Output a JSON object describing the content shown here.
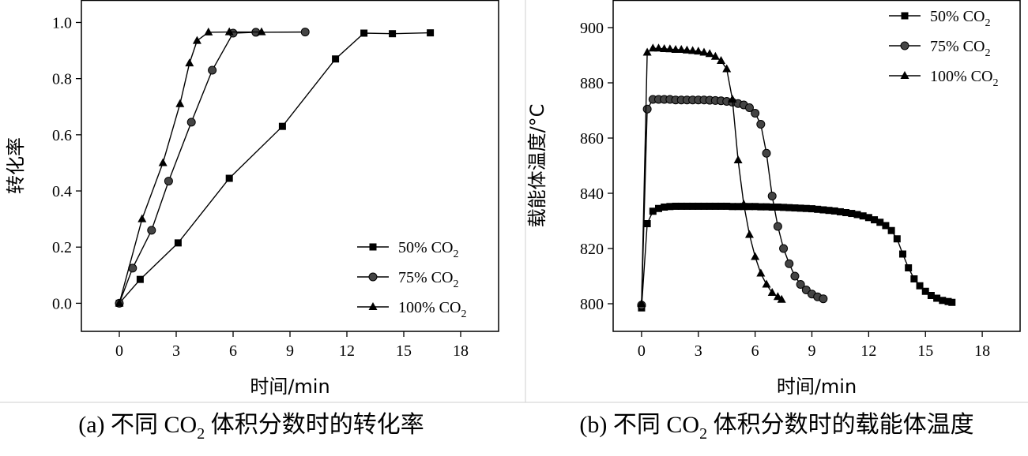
{
  "chart_data": [
    {
      "type": "line",
      "caption_prefix": "(a) 不同 CO",
      "caption_sub": "2",
      "caption_suffix": " 体积分数时的转化率",
      "xlabel": "时间/min",
      "ylabel": "转化率",
      "xlim": [
        -2,
        20
      ],
      "ylim": [
        -0.1,
        1.08
      ],
      "xticks": [
        0,
        3,
        6,
        9,
        12,
        15,
        18
      ],
      "xtick_labels": [
        "0",
        "3",
        "6",
        "9",
        "12",
        "15",
        "18"
      ],
      "yticks": [
        0,
        0.2,
        0.4,
        0.6,
        0.8,
        1.0
      ],
      "ytick_labels": [
        "0.0",
        "0.2",
        "0.4",
        "0.6",
        "0.8",
        "1.0"
      ],
      "grid": false,
      "legend_position": "bottom-right",
      "series": [
        {
          "name": "50% CO",
          "name_sub": "2",
          "marker": "square",
          "x": [
            0,
            1.1,
            3.1,
            5.8,
            8.6,
            11.4,
            12.9,
            14.4,
            16.4
          ],
          "y": [
            0,
            0.085,
            0.215,
            0.445,
            0.63,
            0.87,
            0.962,
            0.96,
            0.963
          ]
        },
        {
          "name": "75% CO",
          "name_sub": "2",
          "marker": "circle",
          "x": [
            0,
            0.7,
            1.7,
            2.6,
            3.8,
            4.9,
            6.0,
            7.2,
            9.8
          ],
          "y": [
            0,
            0.125,
            0.26,
            0.435,
            0.645,
            0.83,
            0.962,
            0.965,
            0.966
          ]
        },
        {
          "name": "100% CO",
          "name_sub": "2",
          "marker": "triangle",
          "x": [
            0,
            1.2,
            2.3,
            3.2,
            3.7,
            4.1,
            4.7,
            5.8,
            7.5
          ],
          "y": [
            0,
            0.3,
            0.5,
            0.71,
            0.855,
            0.935,
            0.965,
            0.966,
            0.966
          ]
        }
      ]
    },
    {
      "type": "line",
      "caption_prefix": "(b) 不同 CO",
      "caption_sub": "2",
      "caption_suffix": " 体积分数时的载能体温度",
      "xlabel": "时间/min",
      "ylabel": "载能体温度/°C",
      "xlim": [
        -1.5,
        20
      ],
      "ylim": [
        790,
        910
      ],
      "xticks": [
        0,
        3,
        6,
        9,
        12,
        15,
        18
      ],
      "xtick_labels": [
        "0",
        "3",
        "6",
        "9",
        "12",
        "15",
        "18"
      ],
      "yticks": [
        800,
        820,
        840,
        860,
        880,
        900
      ],
      "ytick_labels": [
        "800",
        "820",
        "840",
        "860",
        "880",
        "900"
      ],
      "grid": false,
      "legend_position": "top-right",
      "series": [
        {
          "name": "50% CO",
          "name_sub": "2",
          "marker": "square",
          "x": [
            0,
            0.3,
            0.6,
            0.9,
            1.2,
            1.5,
            1.8,
            2.1,
            2.4,
            2.7,
            3.0,
            3.3,
            3.6,
            3.9,
            4.2,
            4.5,
            4.8,
            5.1,
            5.4,
            5.7,
            6.0,
            6.3,
            6.6,
            6.9,
            7.2,
            7.5,
            7.8,
            8.1,
            8.4,
            8.7,
            9.0,
            9.3,
            9.6,
            9.9,
            10.2,
            10.5,
            10.8,
            11.1,
            11.4,
            11.7,
            12.0,
            12.3,
            12.6,
            12.9,
            13.2,
            13.5,
            13.8,
            14.1,
            14.4,
            14.7,
            15.0,
            15.3,
            15.6,
            15.9,
            16.2,
            16.4
          ],
          "y": [
            798.5,
            829,
            833.5,
            834.5,
            835,
            835.2,
            835.3,
            835.3,
            835.3,
            835.3,
            835.3,
            835.3,
            835.3,
            835.3,
            835.3,
            835.3,
            835.2,
            835.2,
            835.2,
            835.2,
            835.2,
            835.1,
            835.1,
            835,
            835,
            834.9,
            834.8,
            834.7,
            834.6,
            834.5,
            834.4,
            834.2,
            834,
            833.8,
            833.6,
            833.3,
            833,
            832.7,
            832.3,
            831.8,
            831.2,
            830.4,
            829.5,
            828.3,
            826.5,
            823.5,
            818,
            813,
            809,
            806.5,
            804.5,
            803,
            802,
            801.2,
            800.8,
            800.5
          ]
        },
        {
          "name": "75% CO",
          "name_sub": "2",
          "marker": "circle",
          "x": [
            0,
            0.3,
            0.6,
            0.9,
            1.2,
            1.5,
            1.8,
            2.1,
            2.4,
            2.7,
            3.0,
            3.3,
            3.6,
            3.9,
            4.2,
            4.5,
            4.8,
            5.1,
            5.4,
            5.7,
            6.0,
            6.3,
            6.6,
            6.9,
            7.2,
            7.5,
            7.8,
            8.1,
            8.4,
            8.7,
            9.0,
            9.3,
            9.6
          ],
          "y": [
            799.5,
            870.5,
            874,
            874,
            874,
            874,
            873.8,
            873.8,
            873.8,
            873.8,
            873.8,
            873.8,
            873.7,
            873.6,
            873.5,
            873.3,
            873,
            872.5,
            872,
            871,
            869,
            865,
            854.5,
            839,
            828,
            820,
            814.5,
            810,
            807,
            805,
            803.5,
            802.5,
            801.8
          ]
        },
        {
          "name": "100% CO",
          "name_sub": "2",
          "marker": "triangle",
          "x": [
            0,
            0.3,
            0.6,
            0.9,
            1.2,
            1.5,
            1.8,
            2.1,
            2.4,
            2.7,
            3.0,
            3.3,
            3.6,
            3.9,
            4.2,
            4.5,
            4.8,
            5.1,
            5.4,
            5.7,
            6.0,
            6.3,
            6.6,
            6.9,
            7.2,
            7.4
          ],
          "y": [
            800,
            891,
            892.5,
            892.5,
            892.3,
            892.2,
            892,
            892,
            891.8,
            891.6,
            891.4,
            891,
            890.5,
            889.5,
            888,
            885,
            874,
            852,
            836,
            825,
            817,
            811,
            807,
            804,
            802.5,
            801.5
          ]
        }
      ]
    }
  ]
}
